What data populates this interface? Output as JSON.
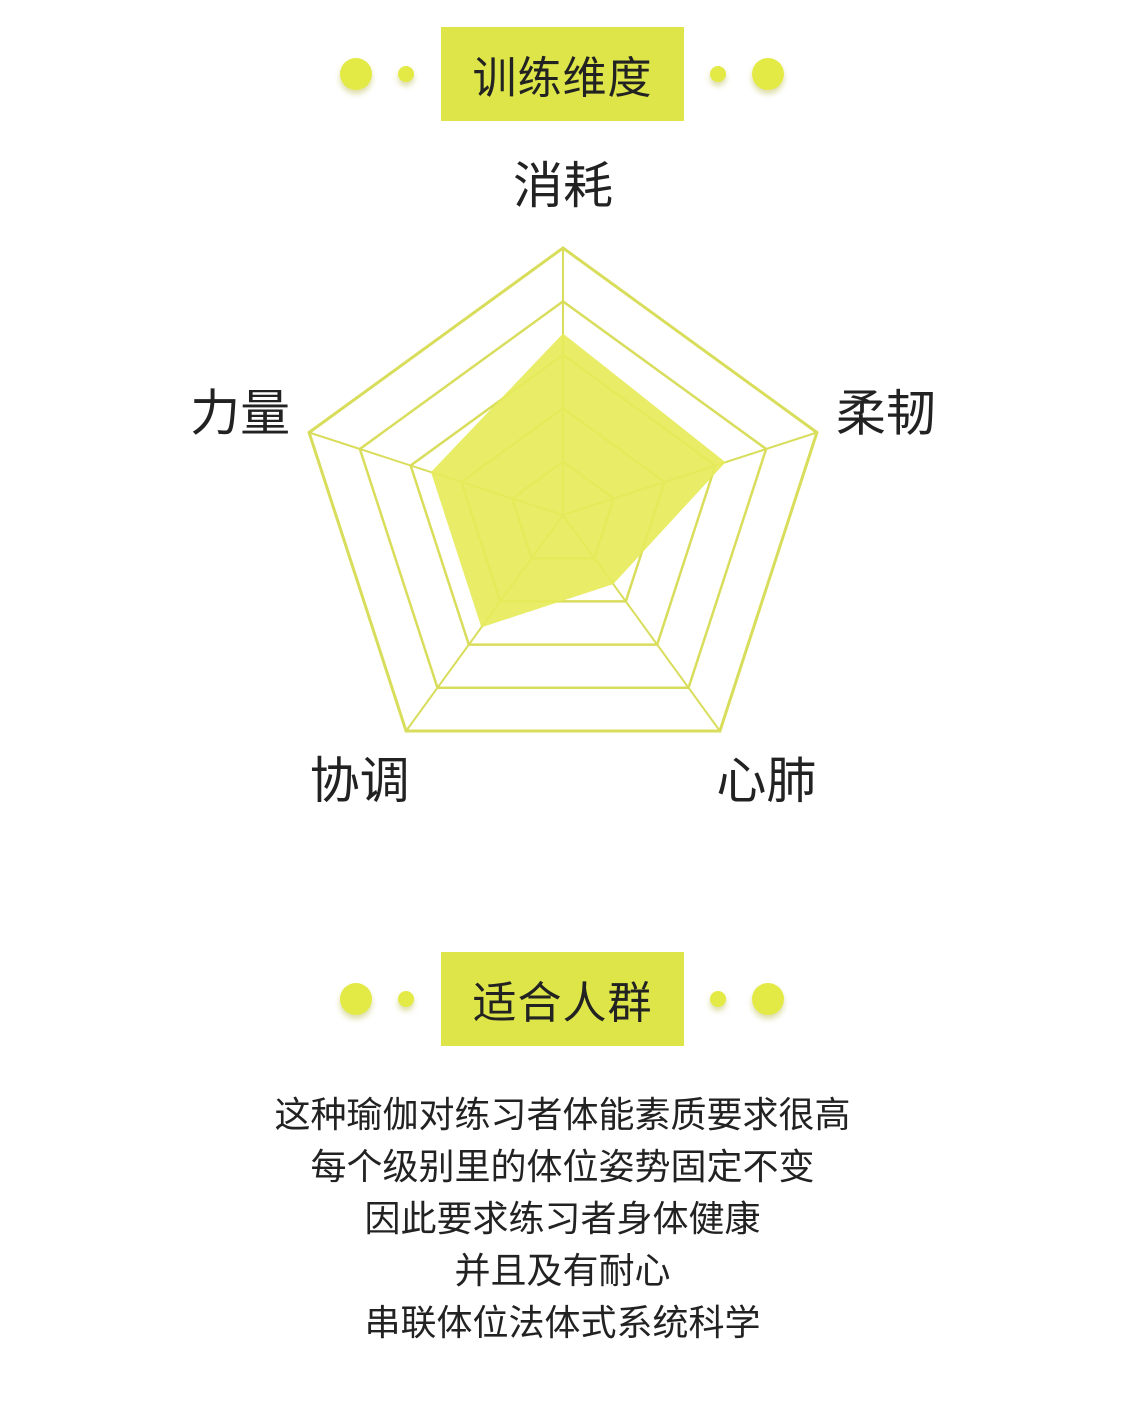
{
  "sections": {
    "training": {
      "title": "训练维度"
    },
    "audience": {
      "title": "适合人群"
    }
  },
  "chart_data": {
    "type": "radar",
    "axes": [
      "消耗",
      "柔韧",
      "心肺",
      "协调",
      "力量"
    ],
    "levels": 5,
    "max": 5,
    "values": [
      3.4,
      3.2,
      1.6,
      2.6,
      2.6
    ],
    "grid": true
  },
  "description": [
    "这种瑜伽对练习者体能素质要求很高",
    "每个级别里的体位姿势固定不变",
    "因此要求练习者身体健康",
    "并且及有耐心",
    "串联体位法体式系统科学"
  ],
  "colors": {
    "accent": "#dde549",
    "grid_line": "#d9dd5c",
    "fill": "#e6ea5a"
  }
}
